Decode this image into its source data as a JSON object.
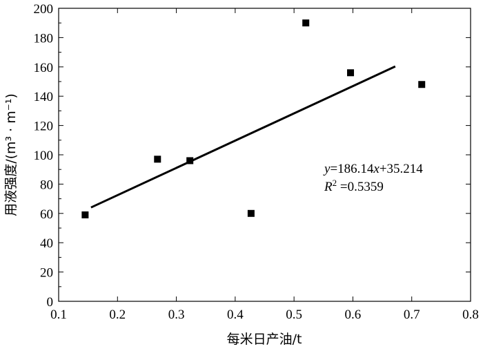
{
  "chart_data": {
    "type": "scatter",
    "xlabel": "每米日产油/t",
    "ylabel": "用液强度/(m³ · m⁻¹)",
    "xlim": [
      0.1,
      0.8
    ],
    "ylim": [
      0,
      200
    ],
    "x_ticks": [
      0.1,
      0.2,
      0.3,
      0.4,
      0.5,
      0.6,
      0.7,
      0.8
    ],
    "x_tick_labels": [
      "0.1",
      "0.2",
      "0.3",
      "0.4",
      "0.5",
      "0.6",
      "0.7",
      "0.8"
    ],
    "y_ticks": [
      0,
      20,
      40,
      60,
      80,
      100,
      120,
      140,
      160,
      180,
      200
    ],
    "y_tick_labels": [
      "0",
      "20",
      "40",
      "60",
      "80",
      "100",
      "120",
      "140",
      "160",
      "180",
      "200"
    ],
    "grid": false,
    "series": [
      {
        "marker": "square",
        "color": "#000000",
        "points": [
          {
            "x": 0.145,
            "y": 59
          },
          {
            "x": 0.268,
            "y": 97
          },
          {
            "x": 0.323,
            "y": 96
          },
          {
            "x": 0.427,
            "y": 60
          },
          {
            "x": 0.52,
            "y": 190
          },
          {
            "x": 0.596,
            "y": 156
          },
          {
            "x": 0.717,
            "y": 148
          }
        ]
      }
    ],
    "trendline": {
      "slope": 186.14,
      "intercept": 35.214,
      "x_range": [
        0.155,
        0.672
      ]
    },
    "annotation": {
      "equation": {
        "y_var": "y",
        "equals": "=186.14",
        "x_var": "x",
        "rest": "+35.214"
      },
      "r2": {
        "var": "R",
        "sup": "2",
        "value": " =0.5359"
      }
    }
  }
}
